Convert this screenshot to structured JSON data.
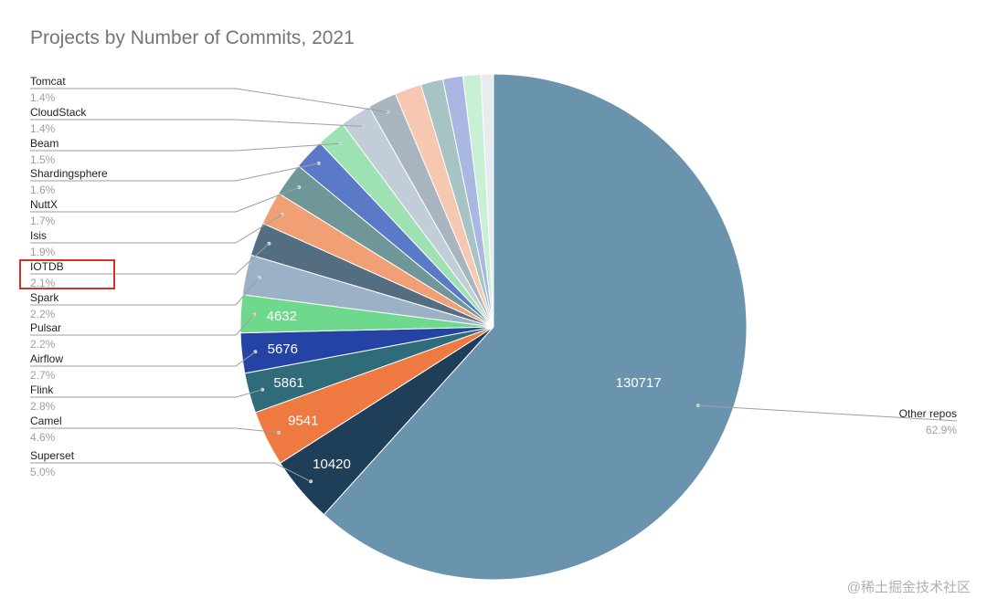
{
  "title": "Projects by Number of Commits, 2021",
  "watermark": "@稀土掘金技术社区",
  "chart_data": {
    "type": "pie",
    "title": "Projects by Number of Commits, 2021",
    "highlighted": "IOTDB",
    "slices": [
      {
        "label": "Other repos",
        "percent": "62.9%",
        "value": 130717,
        "color": "#6a94ad"
      },
      {
        "label": "Superset",
        "percent": "5.0%",
        "value": 10420,
        "color": "#1f3f59"
      },
      {
        "label": "Camel",
        "percent": "4.6%",
        "value": 9541,
        "color": "#ee7a42"
      },
      {
        "label": "Flink",
        "percent": "2.8%",
        "value": 5861,
        "color": "#2f6b79"
      },
      {
        "label": "Airflow",
        "percent": "2.7%",
        "value": 5676,
        "color": "#2443a5"
      },
      {
        "label": "Pulsar",
        "percent": "2.2%",
        "value": 4632,
        "color": "#6ed88c"
      },
      {
        "label": "Spark",
        "percent": "2.2%",
        "color": "#9bb1c6"
      },
      {
        "label": "IOTDB",
        "percent": "2.1%",
        "color": "#546d80"
      },
      {
        "label": "Isis",
        "percent": "1.9%",
        "color": "#f0a074"
      },
      {
        "label": "NuttX",
        "percent": "1.7%",
        "color": "#6f9699"
      },
      {
        "label": "Shardingsphere",
        "percent": "1.6%",
        "color": "#5a79c7"
      },
      {
        "label": "Beam",
        "percent": "1.5%",
        "color": "#9ee2b3"
      },
      {
        "label": "CloudStack",
        "percent": "1.4%",
        "color": "#c2cdd8"
      },
      {
        "label": "Tomcat",
        "percent": "1.4%",
        "color": "#a8b5be"
      },
      {
        "label": "",
        "color": "#f6c8b1"
      },
      {
        "label": "",
        "color": "#a8c3c4"
      },
      {
        "label": "",
        "color": "#aab7e3"
      },
      {
        "label": "",
        "color": "#c7f0d4"
      },
      {
        "label": "",
        "color": "#e6ecf0"
      }
    ]
  }
}
